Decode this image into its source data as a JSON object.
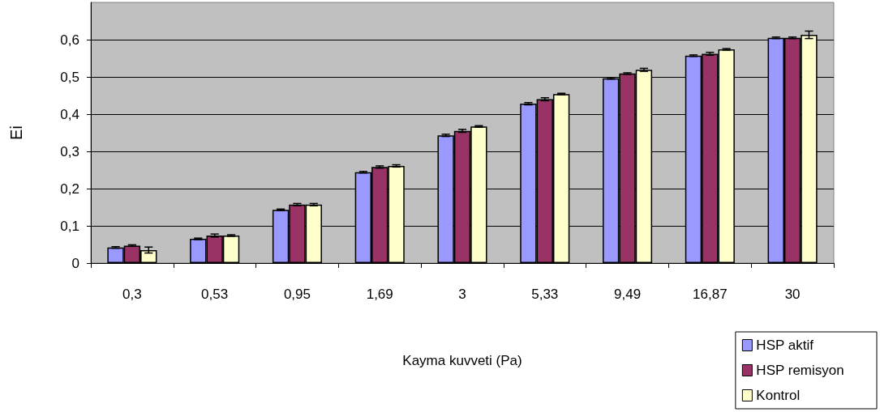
{
  "chart_data": {
    "type": "bar",
    "xlabel": "Kayma kuvveti (Pa)",
    "ylabel": "Ei",
    "categories": [
      "0,3",
      "0,53",
      "0,95",
      "1,69",
      "3",
      "5,33",
      "9,49",
      "16,87",
      "30"
    ],
    "series": [
      {
        "name": "HSP aktif",
        "color": "#9999ff",
        "values": [
          0.042,
          0.065,
          0.143,
          0.244,
          0.343,
          0.428,
          0.496,
          0.557,
          0.605
        ],
        "errors": [
          0.002,
          0.002,
          0.002,
          0.002,
          0.003,
          0.003,
          0.002,
          0.002,
          0.002
        ]
      },
      {
        "name": "HSP remisyon",
        "color": "#993366",
        "values": [
          0.047,
          0.074,
          0.157,
          0.258,
          0.355,
          0.44,
          0.509,
          0.562,
          0.605
        ],
        "errors": [
          0.002,
          0.004,
          0.003,
          0.003,
          0.004,
          0.004,
          0.002,
          0.004,
          0.002
        ]
      },
      {
        "name": "Kontrol",
        "color": "#ffffcc",
        "values": [
          0.035,
          0.074,
          0.157,
          0.261,
          0.367,
          0.454,
          0.519,
          0.574,
          0.613
        ],
        "errors": [
          0.008,
          0.002,
          0.003,
          0.003,
          0.002,
          0.002,
          0.004,
          0.002,
          0.01
        ]
      }
    ],
    "ylim": [
      0,
      0.7
    ],
    "yticks": [
      0,
      {
        "value": 0.1,
        "label": "0,1"
      },
      {
        "value": 0.2,
        "label": "0,2"
      },
      {
        "value": 0.3,
        "label": "0,3"
      },
      {
        "value": 0.4,
        "label": "0,4"
      },
      {
        "value": 0.5,
        "label": "0,5"
      },
      {
        "value": 0.6,
        "label": "0,6"
      }
    ],
    "grid": "y",
    "legend": "bottom right"
  }
}
